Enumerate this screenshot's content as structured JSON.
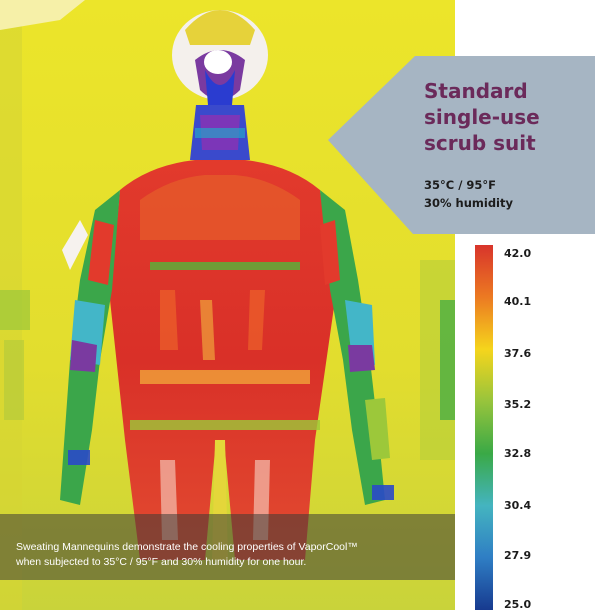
{
  "title_lines": [
    "Standard",
    "single-use",
    "scrub suit"
  ],
  "conditions": [
    "35°C / 95°F",
    "30% humidity"
  ],
  "scale": {
    "labels": [
      "42.0",
      "40.1",
      "37.6",
      "35.2",
      "32.8",
      "30.4",
      "27.9",
      "25.0"
    ],
    "colors": [
      "#d8342b",
      "#ec7a22",
      "#f5d51c",
      "#97c43c",
      "#3aa946",
      "#44b4c0",
      "#2f7ec4",
      "#173a8f"
    ]
  },
  "caption_lines": [
    "Sweating Mannequins demonstrate the cooling properties of VaporCool™",
    "when subjected to 35°C / 95°F and 30% humidity for one hour."
  ],
  "colors": {
    "title": "#6b2a5a",
    "callout": "#a6b5c3",
    "background": "#e9e22c"
  }
}
